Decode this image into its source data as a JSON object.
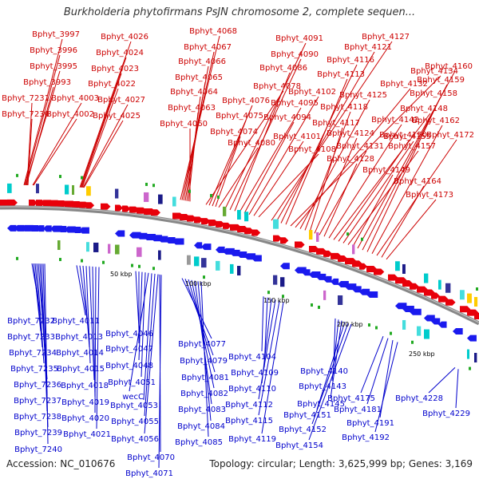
{
  "title": "Burkholderia phytofirmans PsJN chromosome 2, complete sequen...",
  "footer": {
    "accession": "Accession: NC_010676",
    "stats": "Topology: circular; Length: 3,625,999 bp; Genes: 3,169"
  },
  "colors": {
    "forward": "#e8000a",
    "reverse": "#1a1aee",
    "backbone": "#888888",
    "top_label": "#cc0000",
    "bottom_label": "#0000cc"
  },
  "kbp_labels": [
    "50 kbp",
    "100 kbp",
    "150 kbp",
    "200 kbp",
    "250 kbp"
  ],
  "top_labels": [
    "Bphyt_3997",
    "Bphyt_3996",
    "Bphyt_3995",
    "Bphyt_3993",
    "Bphyt_7231",
    "Bphyt_7230",
    "Bphyt_4003",
    "Bphyt_4002",
    "Bphyt_4026",
    "Bphyt_4024",
    "Bphyt_4023",
    "Bphyt_4022",
    "Bphyt_4027",
    "Bphyt_4025",
    "Bphyt_4068",
    "Bphyt_4067",
    "Bphyt_4066",
    "Bphyt_4065",
    "Bphyt_4064",
    "Bphyt_4063",
    "Bphyt_4060",
    "Bphyt_4078",
    "Bphyt_4076",
    "Bphyt_4075",
    "Bphyt_4074",
    "Bphyt_4080",
    "Bphyt_4091",
    "Bphyt_4090",
    "Bphyt_4086",
    "Bphyt_4095",
    "Bphyt_4094",
    "Bphyt_4102",
    "Bphyt_4101",
    "Bphyt_4108",
    "Bphyt_4127",
    "Bphyt_4121",
    "Bphyt_4116",
    "Bphyt_4113",
    "Bphyt_4134",
    "Bphyt_4132",
    "Bphyt_4125",
    "Bphyt_4118",
    "Bphyt_4117",
    "Bphyt_4124",
    "Bphyt_4131",
    "Bphyt_4128",
    "Bphyt_4142",
    "Bphyt_4148",
    "Bphyt_4150",
    "Bphyt_4155",
    "Bphyt_4157",
    "Bphyt_4149",
    "Bphyt_4160",
    "Bphyt_4159",
    "Bphyt_4158",
    "Bphyt_4162",
    "Bphyt_4172",
    "Bphyt_4164",
    "Bphyt_4173"
  ],
  "bottom_labels": [
    "Bphyt_7232",
    "Bphyt_7233",
    "Bphyt_7234",
    "Bphyt_7235",
    "Bphyt_7236",
    "Bphyt_7237",
    "Bphyt_7238",
    "Bphyt_7239",
    "Bphyt_7240",
    "Bphyt_4011",
    "Bphyt_4013",
    "Bphyt_4014",
    "Bphyt_4015",
    "Bphyt_4018",
    "Bphyt_4019",
    "Bphyt_4020",
    "Bphyt_4021",
    "Bphyt_4046",
    "Bphyt_4047",
    "Bphyt_4048",
    "Bphyt_4051",
    "wecC",
    "Bphyt_4053",
    "Bphyt_4055",
    "Bphyt_4056",
    "Bphyt_4070",
    "Bphyt_4071",
    "Bphyt_4077",
    "Bphyt_4079",
    "Bphyt_4081",
    "Bphyt_4082",
    "Bphyt_4083",
    "Bphyt_4084",
    "Bphyt_4085",
    "Bphyt_4104",
    "Bphyt_4109",
    "Bphyt_4110",
    "Bphyt_4112",
    "Bphyt_4115",
    "Bphyt_4119",
    "Bphyt_4140",
    "Bphyt_4143",
    "Bphyt_4145",
    "Bphyt_4151",
    "Bphyt_4152",
    "Bphyt_4154",
    "Bphyt_4175",
    "Bphyt_4181",
    "Bphyt_4191",
    "Bphyt_4192",
    "Bphyt_4228",
    "Bphyt_4229"
  ]
}
